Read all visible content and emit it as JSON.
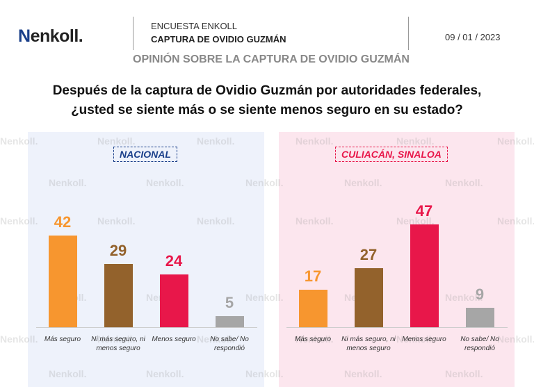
{
  "header": {
    "logo": "enkoll.",
    "survey": "ENCUESTA ENKOLL",
    "topic": "CAPTURA DE OVIDIO GUZMÁN",
    "date": "09 / 01 / 2023"
  },
  "subtitle": "OPINIÓN SOBRE LA CAPTURA DE OVIDIO GUZMÁN",
  "watermark": "enkoll.",
  "colors": {
    "orange": "#f7962f",
    "brown": "#93622c",
    "red": "#e8174a",
    "gray": "#a6a6a6"
  },
  "chart_data": [
    {
      "type": "bar",
      "title": "NACIONAL",
      "question": "Después de la captura de Ovidio Guzmán por autoridades federales, ¿usted se siente más o se siente menos seguro en su estado?",
      "categories": [
        "Más seguro",
        "Ni más seguro, ni menos seguro",
        "Menos seguro",
        "No sabe/ No respondió"
      ],
      "values": [
        42,
        29,
        24,
        5
      ],
      "ylim": [
        0,
        50
      ]
    },
    {
      "type": "bar",
      "title": "CULIACÁN, SINALOA",
      "question": "Después de la captura de Ovidio Guzmán por autoridades federales, ¿usted se siente más o se siente menos seguro en su estado?",
      "categories": [
        "Más seguro",
        "Ni más seguro, ni menos seguro",
        "Menos seguro",
        "No sabe/ No respondió"
      ],
      "values": [
        17,
        27,
        47,
        9
      ],
      "ylim": [
        0,
        50
      ]
    }
  ],
  "question_lines": [
    "Después de la captura de Ovidio Guzmán por autoridades federales,",
    "¿usted se siente más o se siente menos seguro en su estado?"
  ]
}
